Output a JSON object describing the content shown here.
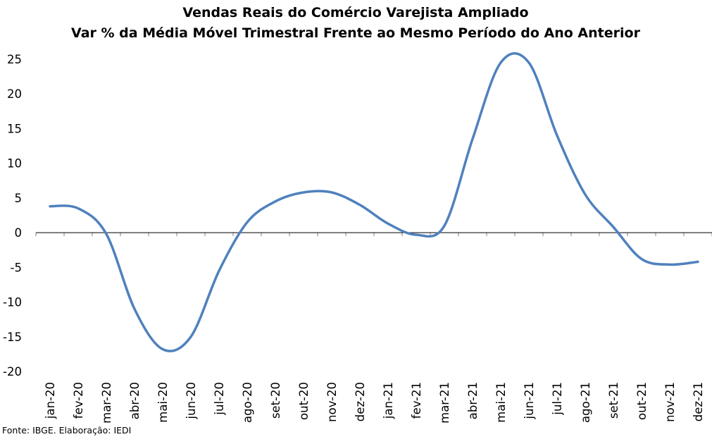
{
  "chart_data": {
    "type": "line",
    "title": "Vendas Reais do Comércio Varejista Ampliado",
    "subtitle": "Var % da Média Móvel Trimestral Frente ao Mesmo Período do Ano Anterior",
    "xlabel": "",
    "ylabel": "",
    "categories": [
      "jan-20",
      "fev-20",
      "mar-20",
      "abr-20",
      "mai-20",
      "jun-20",
      "jul-20",
      "ago-20",
      "set-20",
      "out-20",
      "nov-20",
      "dez-20",
      "jan-21",
      "fev-21",
      "mar-21",
      "abr-21",
      "mai-21",
      "jun-21",
      "jul-21",
      "ago-21",
      "set-21",
      "out-21",
      "nov-21",
      "dez-21"
    ],
    "series": [
      {
        "values": [
          3.8,
          3.5,
          -0.2,
          -11.0,
          -16.8,
          -15.0,
          -5.5,
          1.5,
          4.5,
          5.8,
          5.8,
          4.0,
          1.3,
          -0.3,
          1.0,
          13.5,
          24.5,
          24.5,
          14.0,
          5.5,
          0.8,
          -3.8,
          -4.6,
          -4.2
        ]
      }
    ],
    "ylim": [
      -20,
      25
    ],
    "yticks": [
      25,
      20,
      15,
      10,
      5,
      0,
      -5,
      -10,
      -15,
      -20
    ],
    "grid": false,
    "legend": "none",
    "colors": {
      "line": "#4f81bd",
      "zero_line": "#000000",
      "axis_tick": "#808080"
    }
  },
  "source": "Fonte: IBGE. Elaboração: IEDI"
}
